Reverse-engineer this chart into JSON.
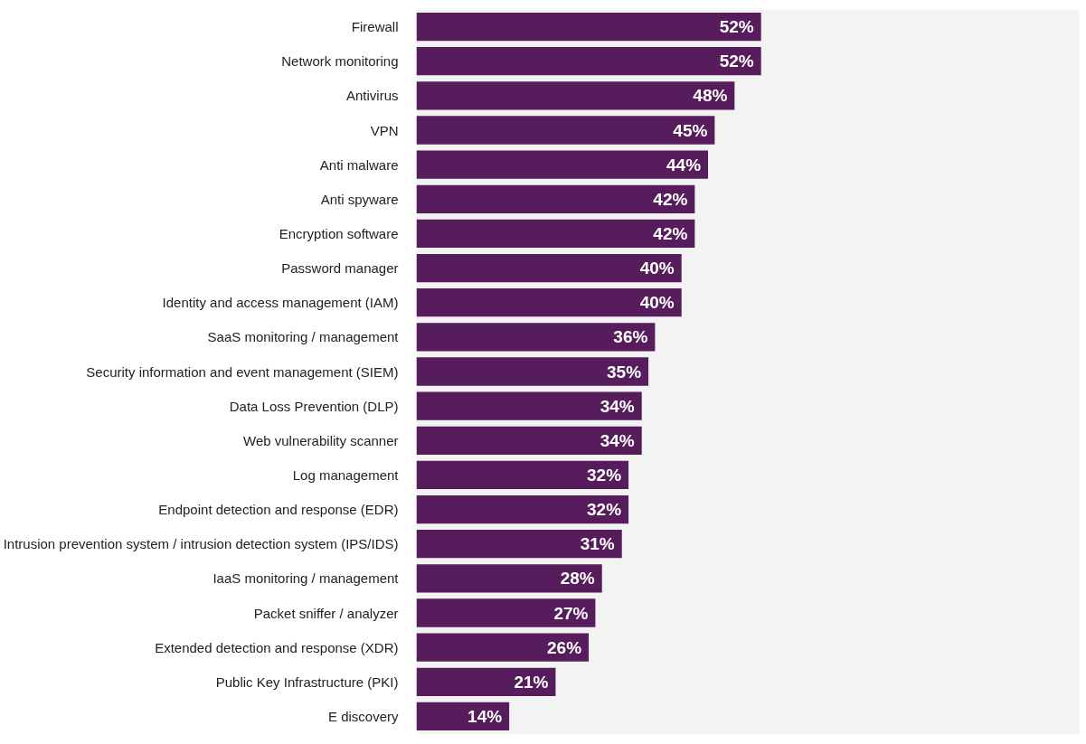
{
  "chart_data": {
    "type": "bar",
    "orientation": "horizontal",
    "categories": [
      "Firewall",
      "Network monitoring",
      "Antivirus",
      "VPN",
      "Anti malware",
      "Anti spyware",
      "Encryption software",
      "Password manager",
      "Identity and access management (IAM)",
      "SaaS monitoring / management",
      "Security information and event management (SIEM)",
      "Data Loss Prevention (DLP)",
      "Web vulnerability scanner",
      "Log management",
      "Endpoint detection and response (EDR)",
      "Intrusion prevention system / intrusion detection system (IPS/IDS)",
      "IaaS monitoring / management",
      "Packet sniffer / analyzer",
      "Extended detection and response (XDR)",
      "Public Key Infrastructure (PKI)",
      "E discovery"
    ],
    "values": [
      52,
      52,
      48,
      45,
      44,
      42,
      42,
      40,
      40,
      36,
      35,
      34,
      34,
      32,
      32,
      31,
      28,
      27,
      26,
      21,
      14
    ],
    "value_labels": [
      "52%",
      "52%",
      "48%",
      "45%",
      "44%",
      "42%",
      "42%",
      "40%",
      "40%",
      "36%",
      "35%",
      "34%",
      "34%",
      "32%",
      "32%",
      "31%",
      "28%",
      "27%",
      "26%",
      "21%",
      "14%"
    ],
    "color": "#561c5c",
    "xlim": [
      0,
      100
    ],
    "tick_labels": "y",
    "grid": false
  }
}
